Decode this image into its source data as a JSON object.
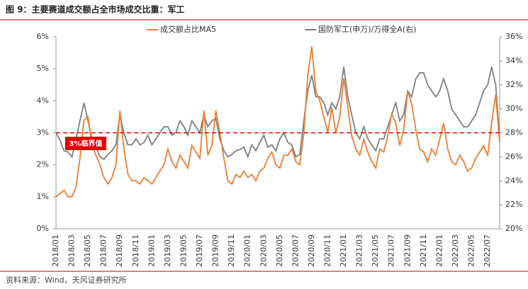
{
  "title": "图 9：主要赛道成交额占全市场成交比重：军工",
  "source": "资料来源：Wind，天风证券研究所",
  "chart_data": {
    "type": "line",
    "categories": [
      "2018/01",
      null,
      null,
      null,
      "2018/03",
      null,
      null,
      null,
      "2018/05",
      null,
      null,
      null,
      "2018/07",
      null,
      null,
      null,
      "2018/09",
      null,
      null,
      null,
      "2018/11",
      null,
      null,
      null,
      "2019/01",
      null,
      null,
      null,
      "2019/03",
      null,
      null,
      null,
      "2019/05",
      null,
      null,
      null,
      "2019/07",
      null,
      null,
      null,
      "2019/09",
      null,
      null,
      null,
      "2019/11",
      null,
      null,
      null,
      "2020/01",
      null,
      null,
      null,
      "2020/03",
      null,
      null,
      null,
      "2020/05",
      null,
      null,
      null,
      "2020/07",
      null,
      null,
      null,
      "2020/09",
      null,
      null,
      null,
      "2020/11",
      null,
      null,
      null,
      "2021/01",
      null,
      null,
      null,
      "2021/03",
      null,
      null,
      null,
      "2021/05",
      null,
      null,
      null,
      "2021/07",
      null,
      null,
      null,
      "2021/09",
      null,
      null,
      null,
      "2021/11",
      null,
      null,
      null,
      "2022/01",
      null,
      null,
      null,
      "2022/03",
      null,
      null,
      null,
      "2022/05",
      null,
      null,
      null,
      "2022/07",
      null,
      null,
      null
    ],
    "series": [
      {
        "name": "成交额占比MA5",
        "color": "#ed7d31",
        "axis": "y",
        "values": [
          1.0,
          1.1,
          1.2,
          1.0,
          1.0,
          1.3,
          2.2,
          3.4,
          3.5,
          2.6,
          2.3,
          2.0,
          1.6,
          1.4,
          1.6,
          2.0,
          3.7,
          2.5,
          1.7,
          1.5,
          1.5,
          1.4,
          1.6,
          1.5,
          1.4,
          1.6,
          1.8,
          2.0,
          2.5,
          2.1,
          1.9,
          2.3,
          2.1,
          1.9,
          2.6,
          2.4,
          2.2,
          3.7,
          2.3,
          2.6,
          3.7,
          3.0,
          2.2,
          1.5,
          1.4,
          1.7,
          1.6,
          1.8,
          1.6,
          1.7,
          1.5,
          1.8,
          1.9,
          2.2,
          2.4,
          2.0,
          1.9,
          2.3,
          2.3,
          2.5,
          2.1,
          2.0,
          3.0,
          4.8,
          5.7,
          4.3,
          4.0,
          3.5,
          3.0,
          3.8,
          3.0,
          3.5,
          4.7,
          3.8,
          2.9,
          2.5,
          2.3,
          2.8,
          2.4,
          2.1,
          1.9,
          2.5,
          2.4,
          2.9,
          3.6,
          3.3,
          2.6,
          3.1,
          4.3,
          3.9,
          3.1,
          2.5,
          2.4,
          2.1,
          2.5,
          2.3,
          2.8,
          3.3,
          2.5,
          2.1,
          2.0,
          2.3,
          2.1,
          1.8,
          1.9,
          2.2,
          2.4,
          2.6,
          2.3,
          3.3,
          4.2,
          2.7
        ]
      },
      {
        "name": "国防军工(申万)/万得全A(右)",
        "color": "#7f7f7f",
        "axis": "y2",
        "values": [
          28.0,
          27.4,
          26.5,
          26.4,
          26.0,
          27.5,
          29.0,
          30.5,
          29.0,
          27.5,
          26.8,
          26.0,
          25.8,
          26.2,
          26.5,
          27.0,
          29.5,
          28.0,
          27.0,
          27.0,
          27.5,
          27.0,
          27.2,
          27.8,
          27.0,
          27.5,
          28.0,
          28.5,
          28.5,
          27.8,
          28.0,
          29.0,
          28.5,
          27.8,
          29.0,
          28.5,
          28.0,
          29.5,
          28.5,
          29.0,
          29.2,
          27.5,
          26.5,
          26.0,
          26.2,
          26.5,
          26.6,
          26.8,
          26.0,
          27.0,
          26.5,
          27.2,
          27.8,
          26.8,
          27.0,
          26.5,
          27.5,
          28.0,
          27.2,
          27.0,
          26.0,
          26.2,
          29.0,
          31.5,
          32.8,
          31.0,
          31.0,
          30.5,
          29.5,
          30.5,
          30.0,
          31.0,
          33.5,
          31.0,
          29.5,
          28.0,
          27.5,
          28.5,
          27.5,
          27.0,
          26.5,
          27.5,
          27.5,
          28.5,
          29.5,
          30.5,
          29.0,
          29.5,
          31.5,
          31.0,
          32.5,
          33.0,
          33.0,
          32.0,
          31.5,
          31.0,
          31.5,
          32.5,
          31.5,
          30.0,
          29.5,
          29.0,
          28.5,
          28.5,
          29.0,
          29.5,
          30.5,
          31.5,
          32.0,
          33.5,
          32.0,
          27.5
        ]
      }
    ],
    "ylim": [
      0,
      6
    ],
    "yticks": [
      {
        "value": 0,
        "label": "0%"
      },
      {
        "value": 1,
        "label": "1%"
      },
      {
        "value": 2,
        "label": "2%"
      },
      {
        "value": 3,
        "label": "3%"
      },
      {
        "value": 4,
        "label": "4%"
      },
      {
        "value": 5,
        "label": "5%"
      },
      {
        "value": 6,
        "label": "6%"
      }
    ],
    "y2lim": [
      20,
      36
    ],
    "y2ticks": [
      {
        "value": 20,
        "label": "20%"
      },
      {
        "value": 22,
        "label": "22%"
      },
      {
        "value": 24,
        "label": "24%"
      },
      {
        "value": 26,
        "label": "26%"
      },
      {
        "value": 28,
        "label": "28%"
      },
      {
        "value": 30,
        "label": "30%"
      },
      {
        "value": 32,
        "label": "32%"
      },
      {
        "value": 34,
        "label": "34%"
      },
      {
        "value": 36,
        "label": "36%"
      }
    ],
    "threshold": {
      "value": 3,
      "label": "3%临界值",
      "color": "#e00000"
    }
  }
}
